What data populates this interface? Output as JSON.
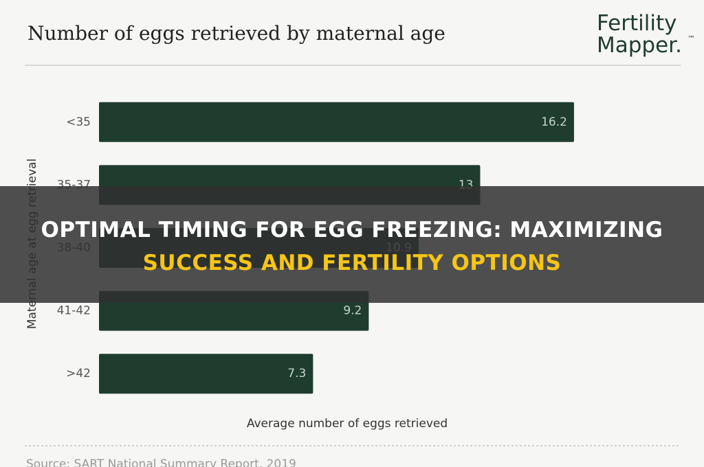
{
  "chart_data": {
    "type": "bar",
    "orientation": "horizontal",
    "title": "Number of eggs retrieved by maternal age",
    "categories": [
      "<35",
      "35-37",
      "38-40",
      "41-42",
      ">42"
    ],
    "values": [
      16.2,
      13,
      10.9,
      9.2,
      7.3
    ],
    "color": "#1e3d2f",
    "xlim": [
      0,
      20
    ],
    "x_label": "Average number of eggs retrieved",
    "y_label": "Maternal age at egg retrieval",
    "source": "Source: SART National Summary Report, 2019"
  },
  "logo": {
    "line1": "Fertility",
    "line2": "Mapper.",
    "mark": "™"
  },
  "overlay": {
    "line1": "OPTIMAL TIMING FOR EGG FREEZING: MAXIMIZING",
    "line2": "SUCCESS AND FERTILITY OPTIONS"
  }
}
